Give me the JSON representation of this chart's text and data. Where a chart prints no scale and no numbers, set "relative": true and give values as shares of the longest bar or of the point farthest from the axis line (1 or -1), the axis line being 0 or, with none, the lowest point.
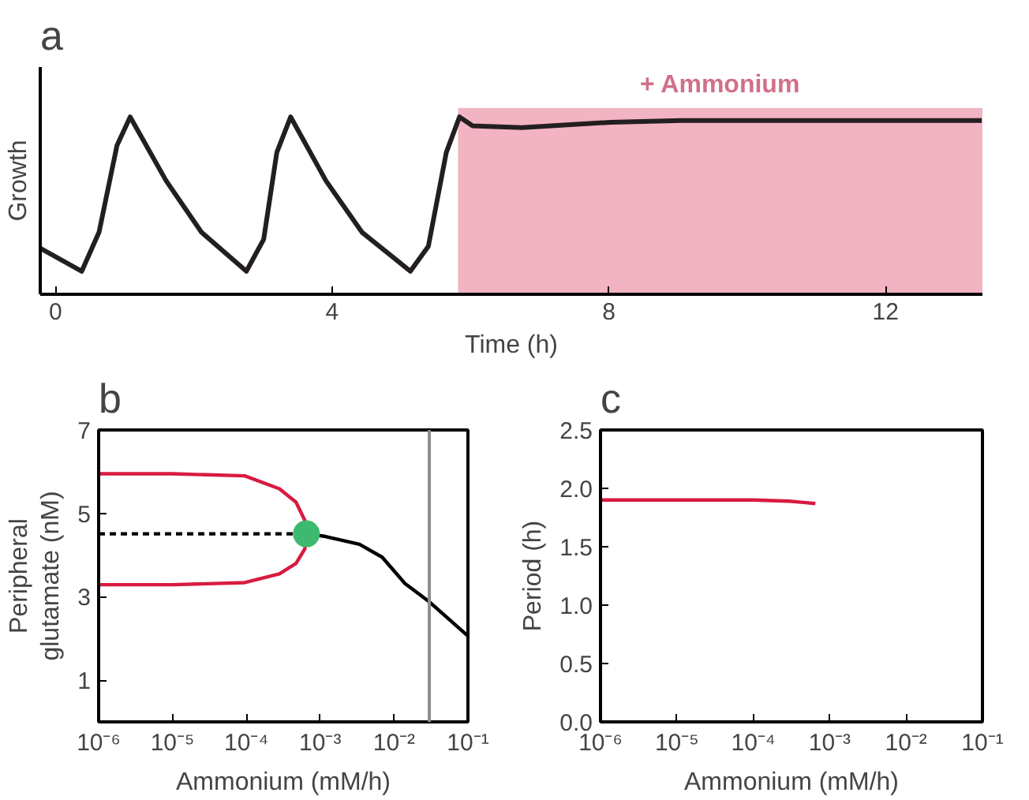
{
  "chart_data": [
    {
      "type": "line",
      "title": "a",
      "xlabel": "Time (h)",
      "ylabel": "Growth",
      "relative": true,
      "grid": false,
      "xlim": [
        -0.22,
        13.4
      ],
      "xticks": [
        0,
        4,
        8,
        12
      ],
      "bands": [
        {
          "axis": "x",
          "from": 5.82,
          "to": 13.4,
          "label": "+ Ammonium",
          "color": "#f2b3c2"
        }
      ],
      "series": [
        {
          "color": "#231f20",
          "x": [
            -0.22,
            0.38,
            0.63,
            0.89,
            1.08,
            1.6,
            2.11,
            2.76,
            3.01,
            3.2,
            3.4,
            3.91,
            4.43,
            5.13,
            5.39,
            5.65,
            5.84,
            6.03,
            6.74,
            8.03,
            9.05,
            11.24,
            13.39
          ],
          "values": [
            0.26,
            0.13,
            0.35,
            0.84,
            1.0,
            0.64,
            0.35,
            0.13,
            0.31,
            0.8,
            1.0,
            0.64,
            0.35,
            0.13,
            0.27,
            0.8,
            1.0,
            0.95,
            0.94,
            0.97,
            0.98,
            0.98,
            0.98
          ]
        }
      ]
    },
    {
      "type": "line",
      "title": "b",
      "xlabel": "Ammonium (mM/h)",
      "ylabel": "Peripheral\nglutamate (nM)",
      "log": "x",
      "grid": false,
      "xlim": [
        1e-06,
        0.1
      ],
      "xticks": [
        {
          "value": 1e-06,
          "label": "10⁻⁶"
        },
        {
          "value": 1e-05,
          "label": "10⁻⁵"
        },
        {
          "value": 0.0001,
          "label": "10⁻⁴"
        },
        {
          "value": 0.001,
          "label": "10⁻³"
        },
        {
          "value": 0.01,
          "label": "10⁻²"
        },
        {
          "value": 0.1,
          "label": "10⁻¹"
        }
      ],
      "ylim": [
        0,
        7
      ],
      "yticks": [
        1,
        3,
        5,
        7
      ],
      "ref_lines": [
        {
          "axis": "x",
          "value": 0.03,
          "color": "#8c8c8c"
        }
      ],
      "series": [
        {
          "color": "#d81b40",
          "x": [
            1e-06,
            1e-05,
            9.5e-05,
            0.00028,
            0.00047,
            0.00062,
            0.00065
          ],
          "values": [
            5.95,
            5.95,
            5.9,
            5.59,
            5.27,
            4.83,
            4.5
          ]
        },
        {
          "color": "#d81b40",
          "x": [
            1e-06,
            1e-05,
            9.5e-05,
            0.00028,
            0.00047,
            0.00062,
            0.00065
          ],
          "values": [
            3.29,
            3.29,
            3.34,
            3.55,
            3.8,
            4.15,
            4.5
          ]
        },
        {
          "color": "#000000",
          "line_style": "dashed",
          "x": [
            1e-06,
            0.00065
          ],
          "values": [
            4.51,
            4.51
          ]
        },
        {
          "color": "#000000",
          "x": [
            0.00065,
            0.00115,
            0.0034,
            0.0069,
            0.014,
            0.03,
            0.1
          ],
          "values": [
            4.51,
            4.45,
            4.26,
            3.95,
            3.32,
            2.88,
            2.06
          ]
        },
        {
          "type": "scatter",
          "marker": "circle",
          "color": "#3dba6f",
          "x": [
            0.00065
          ],
          "values": [
            4.51
          ]
        }
      ]
    },
    {
      "type": "line",
      "title": "c",
      "xlabel": "Ammonium (mM/h)",
      "ylabel": "Period (h)",
      "log": "x",
      "grid": false,
      "xlim": [
        1e-06,
        0.1
      ],
      "xticks": [
        {
          "value": 1e-06,
          "label": "10⁻⁶"
        },
        {
          "value": 1e-05,
          "label": "10⁻⁵"
        },
        {
          "value": 0.0001,
          "label": "10⁻⁴"
        },
        {
          "value": 0.001,
          "label": "10⁻³"
        },
        {
          "value": 0.01,
          "label": "10⁻²"
        },
        {
          "value": 0.1,
          "label": "10⁻¹"
        }
      ],
      "ylim": [
        0,
        2.5
      ],
      "yticks": [
        {
          "value": 0,
          "label": "0.0"
        },
        0.5,
        {
          "value": 1,
          "label": "1.0"
        },
        1.5,
        {
          "value": 2,
          "label": "2.0"
        },
        2.5
      ],
      "series": [
        {
          "color": "#d81b40",
          "x": [
            1e-06,
            1e-05,
            0.0001,
            0.0003,
            0.00065
          ],
          "values": [
            1.9,
            1.9,
            1.9,
            1.89,
            1.87
          ]
        }
      ]
    }
  ]
}
